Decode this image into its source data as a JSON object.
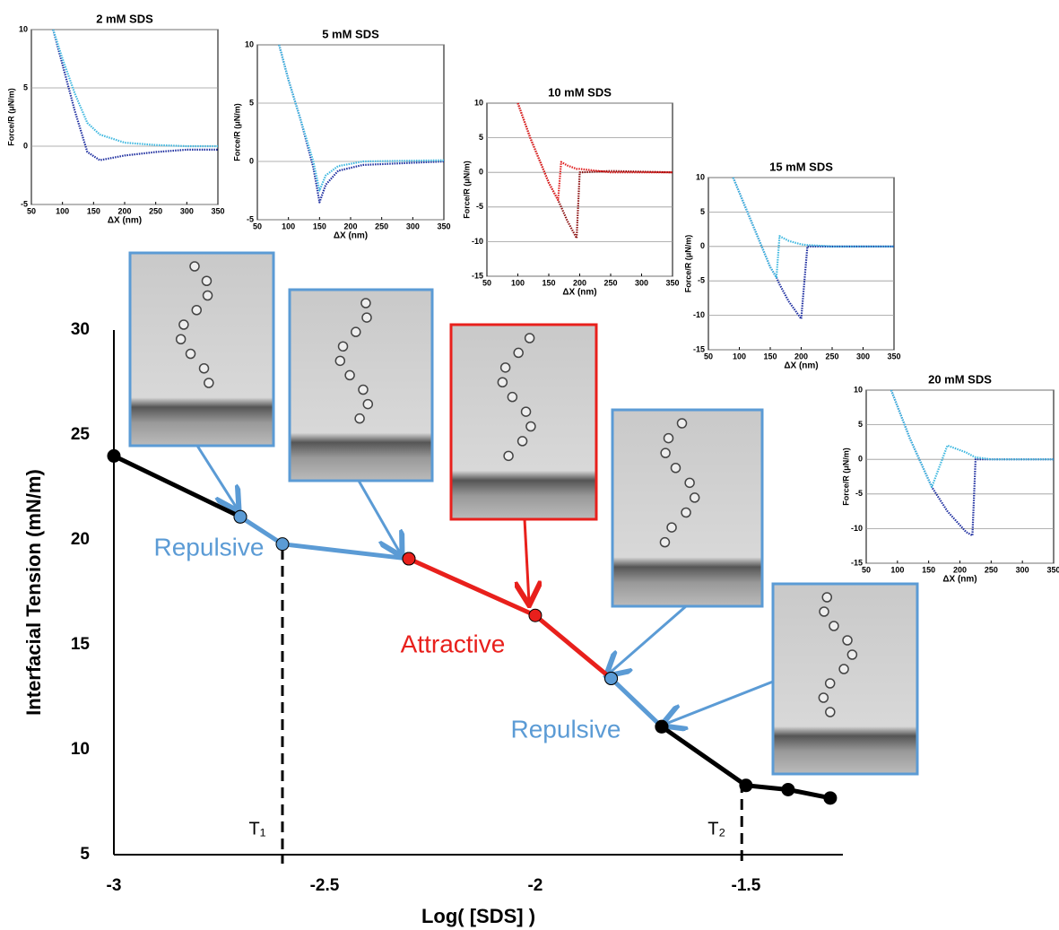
{
  "chart_data": [
    {
      "type": "line",
      "x_label": "Log( [SDS] )",
      "y_label": "Interfacial Tension (mN/m)",
      "x": [
        -3,
        -2.7,
        -2.6,
        -2.3,
        -2,
        -1.82,
        -1.7,
        -1.5,
        -1.4,
        -1.3
      ],
      "series": [
        {
          "color": "#000000",
          "values": [
            24,
            21.1,
            null,
            null,
            null,
            null,
            null,
            null,
            null,
            null
          ]
        },
        {
          "color": "#5b9bd5",
          "values": [
            null,
            21.1,
            19.8,
            19.1,
            null,
            null,
            null,
            null,
            null,
            null
          ]
        },
        {
          "color": "#e8201c",
          "values": [
            null,
            null,
            null,
            19.1,
            16.4,
            13.4,
            null,
            null,
            null,
            null
          ]
        },
        {
          "color": "#5b9bd5",
          "values": [
            null,
            null,
            null,
            null,
            null,
            13.4,
            11.1,
            null,
            null,
            null
          ]
        },
        {
          "color": "#000000",
          "values": [
            null,
            null,
            null,
            null,
            null,
            null,
            11.1,
            8.3,
            8.1,
            7.7
          ]
        }
      ],
      "xlim": [
        -3,
        -1.27
      ],
      "ylim": [
        5,
        30
      ],
      "xticks": [
        -3,
        -2.5,
        -2,
        -1.5
      ],
      "yticks": [
        5,
        10,
        15,
        20,
        25,
        30
      ],
      "thresholds": [
        {
          "value": -2.6,
          "label": "T₁"
        },
        {
          "value": -1.51,
          "label": "T₂"
        }
      ],
      "annotations": [
        "Repulsive",
        "Attractive",
        "Repulsive"
      ]
    },
    {
      "type": "line",
      "title": "2 mM SDS",
      "x_label": "ΔX (nm)",
      "y_label": "Force/R (μN/m)",
      "x": [
        85,
        100,
        120,
        140,
        160,
        200,
        250,
        300,
        350
      ],
      "series": [
        {
          "color": "#1f2fa0",
          "values": [
            10,
            7,
            3,
            -0.5,
            -1.2,
            -0.8,
            -0.5,
            -0.3,
            -0.3
          ]
        },
        {
          "color": "#3fb8e0",
          "values": [
            10,
            7.5,
            4.5,
            2,
            1,
            0.3,
            0.1,
            0,
            0
          ]
        }
      ],
      "xlim": [
        50,
        350
      ],
      "ylim": [
        -5,
        10
      ],
      "xticks": [
        50,
        100,
        150,
        200,
        250,
        300,
        350
      ],
      "yticks": [
        -5,
        0,
        5,
        10
      ],
      "grid": true
    },
    {
      "type": "line",
      "title": "5 mM SDS",
      "x_label": "ΔX (nm)",
      "y_label": "Force/R (μN/m)",
      "x": [
        85,
        100,
        120,
        140,
        150,
        160,
        180,
        220,
        350
      ],
      "series": [
        {
          "color": "#1f2fa0",
          "values": [
            10,
            7,
            3.5,
            -0.5,
            -3.5,
            -2,
            -0.8,
            -0.3,
            0
          ]
        },
        {
          "color": "#3fb8e0",
          "values": [
            10,
            7,
            3.5,
            0,
            -2.5,
            -1.2,
            -0.4,
            0,
            0.1
          ]
        }
      ],
      "xlim": [
        50,
        350
      ],
      "ylim": [
        -5,
        10
      ],
      "xticks": [
        50,
        100,
        150,
        200,
        250,
        300,
        350
      ],
      "yticks": [
        -5,
        0,
        5,
        10
      ],
      "grid": true
    },
    {
      "type": "line",
      "title": "10 mM SDS",
      "x_label": "ΔX (nm)",
      "y_label": "Force/R (μN/m)",
      "x": [
        100,
        120,
        150,
        165,
        170,
        180,
        195,
        200,
        250,
        350
      ],
      "series": [
        {
          "color": "#8b1010",
          "values": [
            10,
            5,
            -1.5,
            -4,
            -5,
            -7,
            -9.5,
            0,
            0.2,
            0
          ]
        },
        {
          "color": "#e02020",
          "values": [
            10,
            5,
            -1.5,
            -4,
            1.5,
            1,
            0.5,
            0.5,
            0,
            0
          ]
        }
      ],
      "xlim": [
        50,
        350
      ],
      "ylim": [
        -15,
        10
      ],
      "xticks": [
        50,
        100,
        150,
        200,
        250,
        300,
        350
      ],
      "yticks": [
        -15,
        -10,
        -5,
        0,
        5,
        10
      ],
      "grid": true
    },
    {
      "type": "line",
      "title": "15 mM SDS",
      "x_label": "ΔX (nm)",
      "y_label": "Force/R (μN/m)",
      "x": [
        90,
        120,
        150,
        160,
        165,
        180,
        200,
        210,
        250,
        350
      ],
      "series": [
        {
          "color": "#1f2fa0",
          "values": [
            10,
            3.5,
            -3,
            -4.5,
            -5.5,
            -8,
            -10.5,
            0,
            0,
            0
          ]
        },
        {
          "color": "#3fb8e0",
          "values": [
            10,
            3.5,
            -3,
            -4.5,
            1.5,
            0.8,
            0.3,
            0.2,
            0,
            0
          ]
        }
      ],
      "xlim": [
        50,
        350
      ],
      "ylim": [
        -15,
        10
      ],
      "xticks": [
        50,
        100,
        150,
        200,
        250,
        300,
        350
      ],
      "yticks": [
        -15,
        -10,
        -5,
        0,
        5,
        10
      ],
      "grid": true
    },
    {
      "type": "line",
      "title": "20 mM SDS",
      "x_label": "ΔX (nm)",
      "y_label": "Force/R (μN/m)",
      "x": [
        90,
        120,
        150,
        155,
        180,
        210,
        220,
        225,
        250,
        350
      ],
      "series": [
        {
          "color": "#1f2fa0",
          "values": [
            10,
            3,
            -3,
            -4,
            -7.5,
            -10.5,
            -11,
            0,
            0,
            0
          ]
        },
        {
          "color": "#3fb8e0",
          "values": [
            10,
            3,
            -3,
            -4,
            2,
            1,
            0.5,
            0.3,
            0,
            0
          ]
        }
      ],
      "xlim": [
        50,
        350
      ],
      "ylim": [
        -15,
        10
      ],
      "xticks": [
        50,
        100,
        150,
        200,
        250,
        300,
        350
      ],
      "yticks": [
        -15,
        -10,
        -5,
        0,
        5,
        10
      ],
      "grid": true
    }
  ]
}
